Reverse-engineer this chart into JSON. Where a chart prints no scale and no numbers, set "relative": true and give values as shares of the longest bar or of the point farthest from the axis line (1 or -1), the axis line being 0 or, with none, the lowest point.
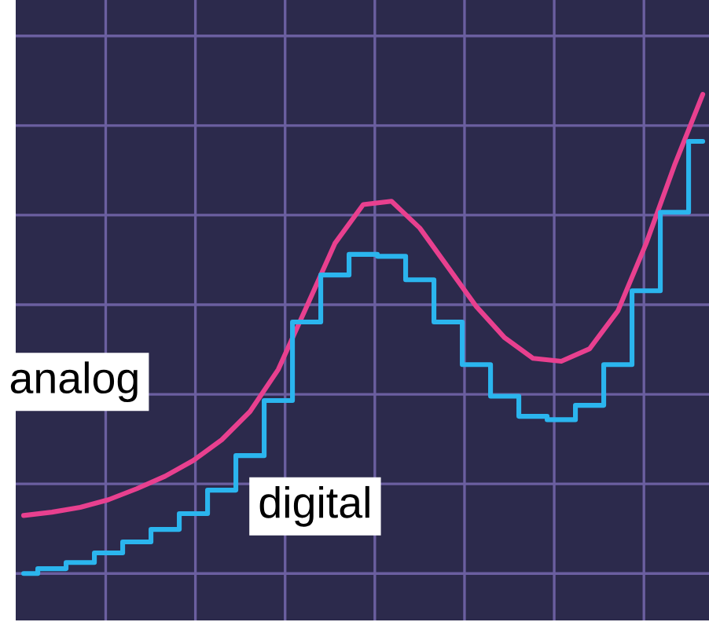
{
  "chart_data": {
    "type": "line",
    "relative": true,
    "grid": true,
    "legend": false,
    "categories": [
      null,
      null,
      null,
      null,
      null,
      null,
      null,
      null,
      null,
      null,
      null,
      null,
      null,
      null,
      null,
      null,
      null,
      null,
      null,
      null,
      null,
      null,
      null,
      null,
      null
    ],
    "series": [
      {
        "name": "analog",
        "color": "#e8408f",
        "values": [
          0.121,
          0.128,
          0.138,
          0.154,
          0.177,
          0.203,
          0.236,
          0.279,
          0.338,
          0.426,
          0.557,
          0.689,
          0.77,
          0.777,
          0.721,
          0.639,
          0.557,
          0.492,
          0.449,
          0.443,
          0.469,
          0.548,
          0.689,
          0.852,
          1.0
        ]
      },
      {
        "name": "digital",
        "type": "step",
        "color": "#2bb5ee",
        "values": [
          0,
          0.01,
          0.023,
          0.043,
          0.066,
          0.092,
          0.125,
          0.174,
          0.246,
          0.361,
          0.525,
          0.623,
          0.666,
          0.662,
          0.613,
          0.525,
          0.436,
          0.37,
          0.328,
          0.321,
          0.351,
          0.436,
          0.59,
          0.754,
          0.902
        ]
      }
    ]
  }
}
